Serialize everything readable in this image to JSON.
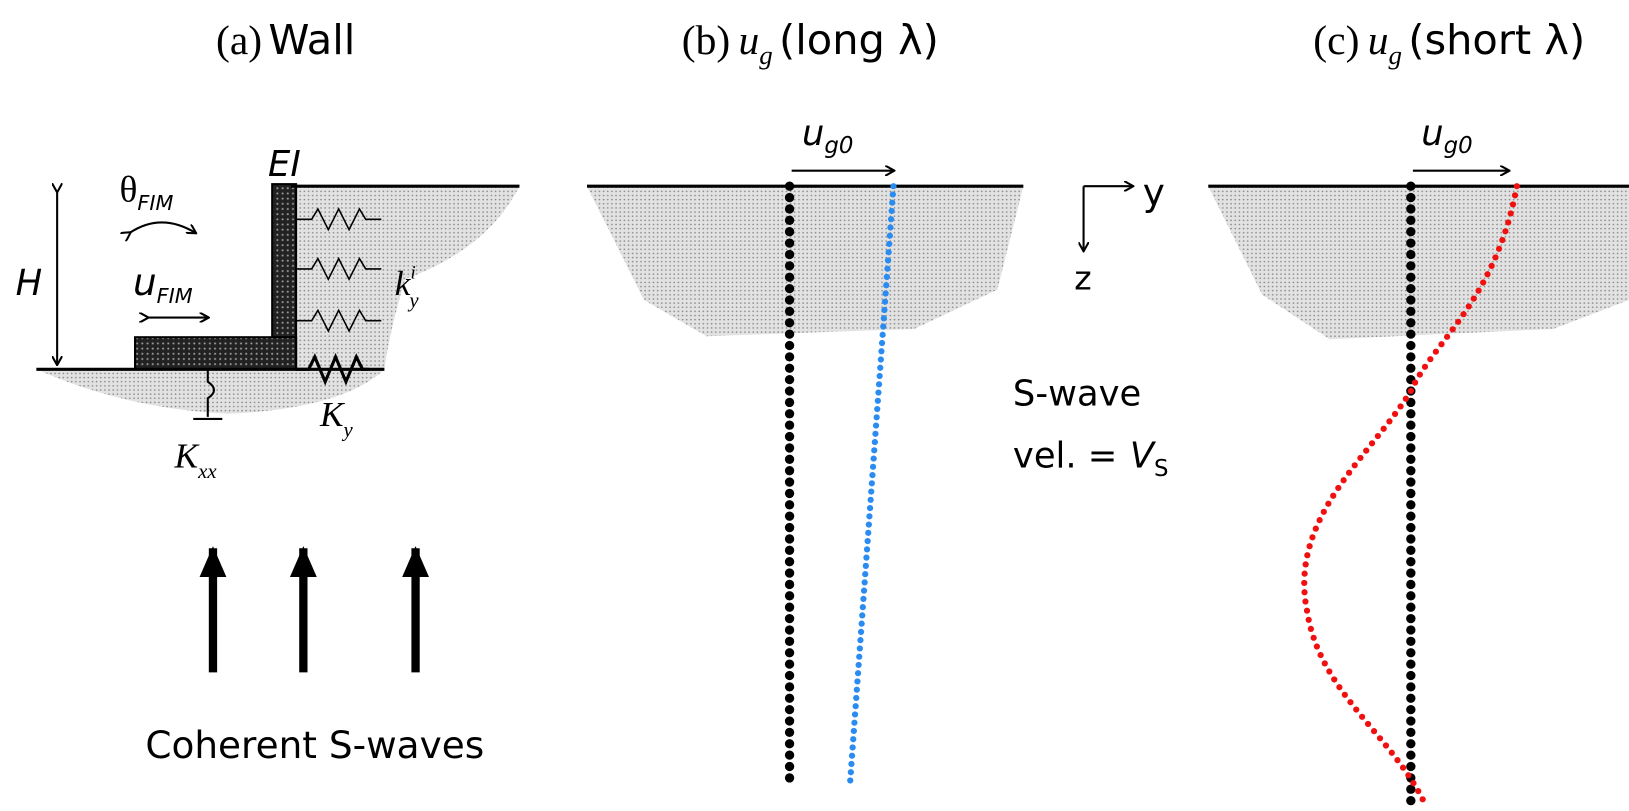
{
  "panels": {
    "a": {
      "title_label": "(a)",
      "title_text": "Wall",
      "theta": "θ",
      "theta_sub": "FIM",
      "ei": "EI",
      "h": "H",
      "u": "u",
      "u_sub": "FIM",
      "k": "k",
      "k_sub": "y",
      "k_sup": "i",
      "ky": "K",
      "ky_sub": "y",
      "kxx": "K",
      "kxx_sub": "xx",
      "caption": "Coherent S-waves"
    },
    "b": {
      "title_label": "(b)",
      "title_symbol": "u",
      "title_sub": "g",
      "title_text": "(long λ)",
      "arrow_symbol": "u",
      "arrow_sub": "g0"
    },
    "c": {
      "title_label": "(c)",
      "title_symbol": "u",
      "title_sub": "g",
      "title_text": "(short λ)",
      "arrow_symbol": "u",
      "arrow_sub": "g0"
    },
    "axes": {
      "y": "y",
      "z": "z"
    },
    "wave": {
      "line1": "S-wave",
      "line2": "vel. =",
      "v": "V",
      "v_sub": "S"
    }
  }
}
